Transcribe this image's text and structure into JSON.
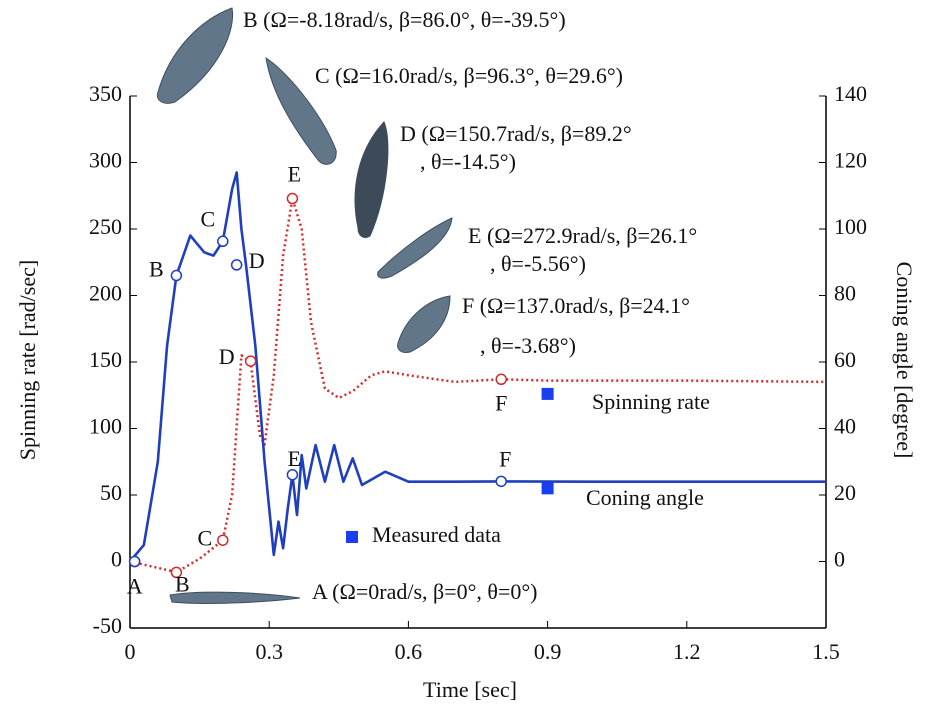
{
  "chart_data": {
    "type": "line",
    "x_label": "Time [sec]",
    "y_label": "Spinning rate [rad/sec]",
    "y2_label": "Coning angle [degree]",
    "xlim": [
      0,
      1.5
    ],
    "xticks": [
      0,
      0.3,
      0.6,
      0.9,
      1.2,
      1.5
    ],
    "ylim": [
      -50,
      350
    ],
    "yticks": [
      -50,
      0,
      50,
      100,
      150,
      200,
      250,
      300,
      350
    ],
    "y2lim": [
      -20,
      140
    ],
    "y2ticks": [
      0,
      20,
      40,
      60,
      80,
      100,
      120,
      140
    ],
    "grid": false,
    "series": [
      {
        "name": "Spinning rate",
        "color": "#d42a2a",
        "style": "dotted",
        "x": [
          0,
          0.05,
          0.1,
          0.15,
          0.2,
          0.22,
          0.24,
          0.26,
          0.28,
          0.29,
          0.31,
          0.33,
          0.35,
          0.37,
          0.39,
          0.42,
          0.45,
          0.48,
          0.52,
          0.55,
          0.6,
          0.7,
          0.8,
          0.9,
          1.0,
          1.2,
          1.5
        ],
        "values": [
          0,
          -4,
          -8,
          2,
          16,
          50,
          155,
          150,
          95,
          88,
          140,
          230,
          273,
          250,
          180,
          130,
          123,
          128,
          140,
          143,
          140,
          135,
          137,
          136,
          136,
          136,
          135
        ]
      },
      {
        "name": "Coning angle",
        "color": "#1f3fbf",
        "style": "solid",
        "axis": "y2",
        "x": [
          0,
          0.03,
          0.06,
          0.08,
          0.1,
          0.13,
          0.16,
          0.18,
          0.2,
          0.22,
          0.23,
          0.24,
          0.25,
          0.27,
          0.29,
          0.31,
          0.32,
          0.33,
          0.34,
          0.35,
          0.36,
          0.37,
          0.38,
          0.4,
          0.42,
          0.44,
          0.46,
          0.48,
          0.5,
          0.55,
          0.6,
          0.7,
          0.8,
          1.0,
          1.5
        ],
        "values": [
          0,
          5,
          30,
          65,
          86,
          98,
          93,
          92,
          96.3,
          112,
          117,
          100,
          89.2,
          65,
          30,
          2,
          12,
          4,
          16,
          26.1,
          14,
          32,
          22,
          35,
          24,
          35,
          24,
          31,
          23,
          27,
          24,
          24,
          24.1,
          24,
          24
        ]
      }
    ],
    "measured": {
      "name": "Measured data",
      "color": "#1a3ff0",
      "points": [
        {
          "x": 0.9,
          "y": 126
        },
        {
          "x": 0.9,
          "y2": 22
        }
      ]
    },
    "states": [
      {
        "label": "A",
        "t": 0.01,
        "spin": 0,
        "coning": 0,
        "text": [
          "A (Ω=0rad/s, β=0°, θ=0°)"
        ]
      },
      {
        "label": "B",
        "t": 0.1,
        "spin": -8.18,
        "coning": 86.0,
        "text": [
          "B (Ω=-8.18rad/s, β=86.0°, θ=-39.5°)"
        ]
      },
      {
        "label": "C",
        "t": 0.2,
        "spin": 16.0,
        "coning": 96.3,
        "text": [
          "C (Ω=16.0rad/s, β=96.3°, θ=29.6°)"
        ]
      },
      {
        "label": "D",
        "t": 0.26,
        "spin": 150.7,
        "coning": 89.2,
        "text": [
          "D (Ω=150.7rad/s, β=89.2°",
          ", θ=-14.5°)"
        ]
      },
      {
        "label": "E",
        "t": 0.35,
        "spin": 272.9,
        "coning": 26.1,
        "text": [
          "E (Ω=272.9rad/s, β=26.1°",
          ", θ=-5.56°)"
        ]
      },
      {
        "label": "F",
        "t": 0.8,
        "spin": 137.0,
        "coning": 24.1,
        "text": [
          "F (Ω=137.0rad/s, β=24.1°",
          ", θ=-3.68°)"
        ]
      }
    ]
  }
}
